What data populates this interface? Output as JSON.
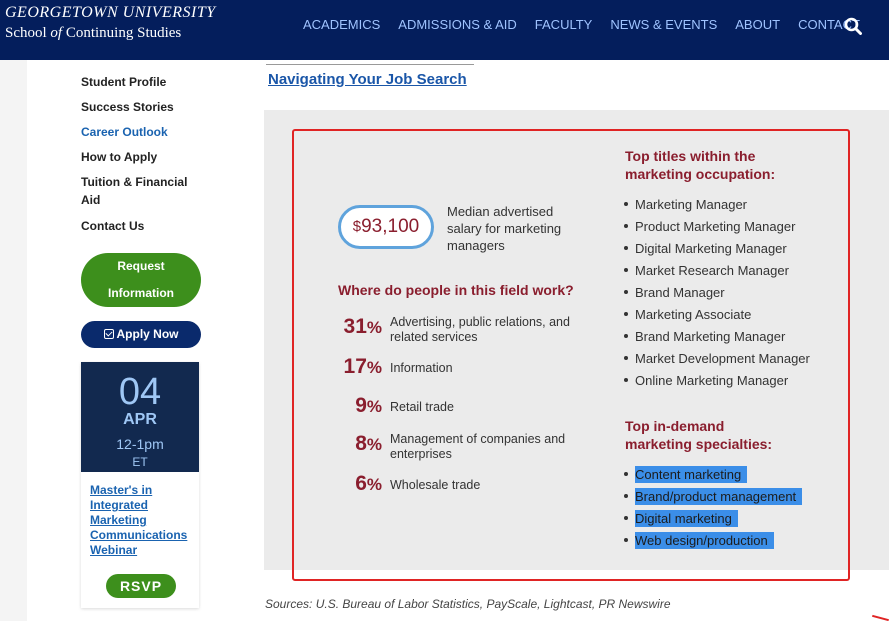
{
  "header": {
    "logo_line1": "GEORGETOWN UNIVERSITY",
    "logo_line2_pre": "School ",
    "logo_line2_of": "of",
    "logo_line2_post": " Continuing Studies",
    "nav": [
      "ACADEMICS",
      "ADMISSIONS & AID",
      "FACULTY",
      "NEWS & EVENTS",
      "ABOUT",
      "CONTACT"
    ],
    "search_icon": "search-icon"
  },
  "sidebar": {
    "items": [
      {
        "label": "Student Profile"
      },
      {
        "label": "Success Stories"
      },
      {
        "label": "Career Outlook"
      },
      {
        "label": "How to Apply"
      },
      {
        "label": "Tuition & Financial Aid"
      },
      {
        "label": "Contact Us"
      }
    ],
    "active_item": "Career Outlook",
    "request_line1": "Request",
    "request_line2": "Information",
    "apply_label": "Apply Now",
    "event": {
      "day": "04",
      "month": "APR",
      "time": "12-1pm",
      "tz": "ET",
      "title": "Master's in Integrated Marketing Communications Webinar",
      "rsvp": "RSVP"
    }
  },
  "main": {
    "job_link": "Navigating Your Job Search",
    "salary_currency": "$",
    "salary_value": "93,100",
    "salary_desc": "Median advertised salary for marketing managers",
    "where_heading": "Where do people in this field work?",
    "stats": [
      {
        "pct": "31",
        "label": "Advertising, public relations, and related services"
      },
      {
        "pct": "17",
        "label": "Information"
      },
      {
        "pct": "9",
        "label": "Retail trade"
      },
      {
        "pct": "8",
        "label": "Management of companies and enterprises"
      },
      {
        "pct": "6",
        "label": "Wholesale trade"
      }
    ],
    "percent_sign": "%",
    "titles_heading_line1": "Top titles within the",
    "titles_heading_line2": "marketing occupation:",
    "titles": [
      "Marketing Manager",
      "Product Marketing Manager",
      "Digital Marketing Manager",
      "Market Research Manager",
      "Brand Manager",
      "Marketing Associate",
      "Brand Marketing Manager",
      "Market Development Manager",
      "Online Marketing Manager"
    ],
    "specialties_heading_line1": "Top in-demand",
    "specialties_heading_line2": "marketing specialties:",
    "specialties": [
      "Content marketing",
      "Brand/product management",
      "Digital marketing",
      "Web design/production"
    ],
    "sources": "Sources: U.S. Bureau of Labor Statistics, PayScale, Lightcast, PR Newswire"
  },
  "colors": {
    "header_bg": "#041e5c",
    "nav_text": "#9fc3ff",
    "accent_maroon": "#8a1e2e",
    "green_button": "#3d8f1c",
    "link_blue": "#1a63b0",
    "highlight": "#3b8ee8",
    "annotation_red": "#e02424"
  }
}
